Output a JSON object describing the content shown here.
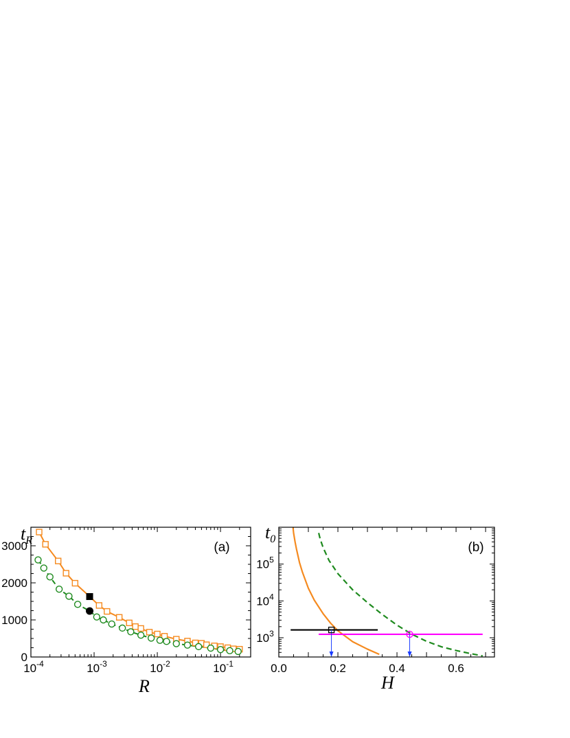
{
  "chart_data": [
    {
      "type": "line",
      "panel_label": "(a)",
      "xlabel": "R",
      "ylabel": "t",
      "ylabel_sub": "R",
      "x_scale": "log",
      "xlim": [
        0.0001,
        0.3
      ],
      "ylim": [
        0,
        3500
      ],
      "x_tick_labels": [
        {
          "value": 0.0001,
          "base": "10",
          "exp": "-4"
        },
        {
          "value": 0.001,
          "base": "10",
          "exp": "-3"
        },
        {
          "value": 0.01,
          "base": "10",
          "exp": "-2"
        },
        {
          "value": 0.1,
          "base": "10",
          "exp": "-1"
        }
      ],
      "y_ticks": [
        0,
        1000,
        2000,
        3000
      ],
      "colors": {
        "orange": "#f58a1f",
        "green": "#1e8a1e",
        "black": "#000000"
      },
      "series": [
        {
          "style": "solid-open-squares",
          "color": "#f58a1f",
          "x": [
            0.000135,
            0.00017,
            0.00027,
            0.00036,
            0.0005,
            0.00085,
            0.0012,
            0.0016,
            0.0025,
            0.0036,
            0.0045,
            0.0055,
            0.0075,
            0.01,
            0.013,
            0.02,
            0.03,
            0.04,
            0.05,
            0.06,
            0.08,
            0.1,
            0.13,
            0.16,
            0.2
          ],
          "y": [
            3370,
            3040,
            2590,
            2260,
            1990,
            1630,
            1390,
            1230,
            1070,
            920,
            820,
            770,
            670,
            620,
            560,
            480,
            430,
            380,
            370,
            330,
            300,
            280,
            250,
            220,
            210
          ]
        },
        {
          "style": "dashed-open-circles",
          "color": "#1e8a1e",
          "x": [
            0.00013,
            0.00016,
            0.0002,
            0.00028,
            0.0004,
            0.00055,
            0.00085,
            0.0011,
            0.0014,
            0.0019,
            0.0028,
            0.0038,
            0.0055,
            0.008,
            0.011,
            0.014,
            0.02,
            0.03,
            0.045,
            0.07,
            0.1,
            0.14,
            0.19
          ],
          "y": [
            2620,
            2400,
            2160,
            1830,
            1640,
            1420,
            1240,
            1080,
            1000,
            890,
            780,
            680,
            590,
            510,
            450,
            420,
            360,
            320,
            280,
            240,
            200,
            170,
            150
          ]
        }
      ],
      "highlighted_points": [
        {
          "marker": "filled-square",
          "x": 0.00085,
          "y": 1630
        },
        {
          "marker": "filled-circle",
          "x": 0.00085,
          "y": 1240
        }
      ]
    },
    {
      "type": "line",
      "panel_label": "(b)",
      "xlabel": "H",
      "ylabel": "t",
      "ylabel_sub": "0",
      "y_scale": "log",
      "xlim": [
        0.0,
        0.73
      ],
      "ylim": [
        300,
        1000000
      ],
      "x_ticks": [
        0.0,
        0.2,
        0.4,
        0.6
      ],
      "x_tick_labels": [
        "0.0",
        "0.2",
        "0.4",
        "0.6"
      ],
      "y_tick_labels": [
        {
          "value": 1000,
          "base": "10",
          "exp": "3"
        },
        {
          "value": 10000,
          "base": "10",
          "exp": "4"
        },
        {
          "value": 100000,
          "base": "10",
          "exp": "5"
        }
      ],
      "colors": {
        "orange": "#f58a1f",
        "green": "#1e8a1e",
        "black": "#000000",
        "magenta": "#ff00ff",
        "blue": "#1a3cff"
      },
      "series": [
        {
          "style": "solid",
          "color": "#f58a1f",
          "x": [
            0.048,
            0.05,
            0.055,
            0.06,
            0.07,
            0.08,
            0.1,
            0.12,
            0.15,
            0.175,
            0.2,
            0.25,
            0.3,
            0.34
          ],
          "y": [
            1000000,
            700000,
            400000,
            250000,
            110000,
            60000,
            22000,
            10500,
            4500,
            2500,
            1550,
            780,
            490,
            355
          ]
        },
        {
          "style": "dashed",
          "color": "#1e8a1e",
          "x": [
            0.135,
            0.14,
            0.15,
            0.17,
            0.2,
            0.25,
            0.3,
            0.35,
            0.4,
            0.45,
            0.5,
            0.55,
            0.6,
            0.65,
            0.69
          ],
          "y": [
            700000,
            480000,
            280000,
            125000,
            55000,
            20000,
            9000,
            4300,
            2200,
            1250,
            800,
            570,
            450,
            370,
            320
          ]
        }
      ],
      "horizontal_lines": [
        {
          "color": "#000000",
          "y": 1630,
          "x_start": 0.04,
          "x_end": 0.335
        },
        {
          "color": "#ff00ff",
          "y": 1240,
          "x_start": 0.135,
          "x_end": 0.69
        }
      ],
      "intersection_markers": [
        {
          "marker": "open-square",
          "color": "#000000",
          "x": 0.178,
          "y": 1630
        },
        {
          "marker": "open-circle",
          "color": "#ff00ff",
          "x": 0.443,
          "y": 1240
        }
      ],
      "drop_arrows": [
        {
          "color": "#1a3cff",
          "x": 0.178,
          "from_y": 1630
        },
        {
          "color": "#1a3cff",
          "x": 0.443,
          "from_y": 1240
        }
      ]
    }
  ]
}
